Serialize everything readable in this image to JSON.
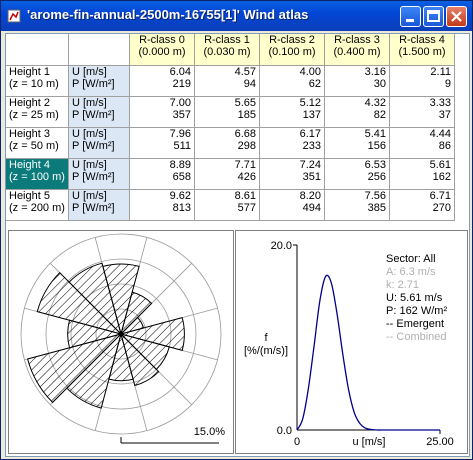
{
  "window": {
    "title": "'arome-fin-annual-2500m-16755[1]' Wind atlas",
    "accent": "#0346d6"
  },
  "table": {
    "columns": [
      {
        "label": "R-class 0",
        "sub": "(0.000 m)"
      },
      {
        "label": "R-class 1",
        "sub": "(0.030 m)"
      },
      {
        "label": "R-class 2",
        "sub": "(0.100 m)"
      },
      {
        "label": "R-class 3",
        "sub": "(0.400 m)"
      },
      {
        "label": "R-class 4",
        "sub": "(1.500 m)"
      }
    ],
    "unit_u": "U [m/s]",
    "unit_p": "P [W/m²]",
    "rows": [
      {
        "label": "Height 1",
        "sub": "(z = 10 m)",
        "u": [
          "6.04",
          "4.57",
          "4.00",
          "3.16",
          "2.11"
        ],
        "p": [
          "219",
          "94",
          "62",
          "30",
          "9"
        ]
      },
      {
        "label": "Height 2",
        "sub": "(z = 25 m)",
        "u": [
          "7.00",
          "5.65",
          "5.12",
          "4.32",
          "3.33"
        ],
        "p": [
          "357",
          "185",
          "137",
          "82",
          "37"
        ]
      },
      {
        "label": "Height 3",
        "sub": "(z = 50 m)",
        "u": [
          "7.96",
          "6.68",
          "6.17",
          "5.41",
          "4.44"
        ],
        "p": [
          "511",
          "298",
          "233",
          "156",
          "86"
        ]
      },
      {
        "label": "Height 4",
        "sub": "(z = 100 m)",
        "u": [
          "8.89",
          "7.71",
          "7.24",
          "6.53",
          "5.61"
        ],
        "p": [
          "658",
          "426",
          "351",
          "256",
          "162"
        ],
        "selected": true
      },
      {
        "label": "Height 5",
        "sub": "(z = 200 m)",
        "u": [
          "9.62",
          "8.61",
          "8.20",
          "7.56",
          "6.71"
        ],
        "p": [
          "813",
          "577",
          "494",
          "385",
          "270"
        ]
      }
    ],
    "selected_color": "#0a7a7a",
    "header_color": "#ffffcc",
    "unit_color": "#dce7f5"
  },
  "rose": {
    "scale_label": "15.0%",
    "sectors_pct": [
      10.5,
      6.5,
      3.5,
      9.5,
      7.5,
      8.0,
      7.0,
      11.5,
      14.5,
      8.0,
      13.0,
      11.0
    ]
  },
  "distribution": {
    "y_max_label": "20.0",
    "y_min_label": "0.0",
    "x_min_label": "0",
    "x_max_label": "25.00",
    "xlabel": "u [m/s]",
    "ylabel_1": "f",
    "ylabel_2": "[%/(m/s)]",
    "legend": {
      "sector": "Sector: All",
      "a": "A: 6.3 m/s",
      "k": "k: 2.71",
      "u": "U: 5.61 m/s",
      "p": "P: 162 W/m²",
      "emergent": "-- Emergent",
      "combined": "-- Combined"
    }
  },
  "chart_data": {
    "type": "line",
    "x": [
      0,
      1,
      2,
      3,
      4,
      5,
      6,
      7,
      8,
      9,
      10,
      11,
      12,
      13,
      14,
      15
    ],
    "series": [
      {
        "name": "Emergent",
        "values": [
          0,
          1.2,
          4.5,
          9.2,
          14.0,
          16.6,
          15.9,
          12.6,
          8.2,
          4.4,
          1.9,
          0.7,
          0.2,
          0.05,
          0,
          0
        ]
      }
    ],
    "title": "",
    "xlabel": "u [m/s]",
    "ylabel": "f [%/(m/s)]",
    "xlim": [
      0,
      25
    ],
    "ylim": [
      0,
      20
    ]
  }
}
